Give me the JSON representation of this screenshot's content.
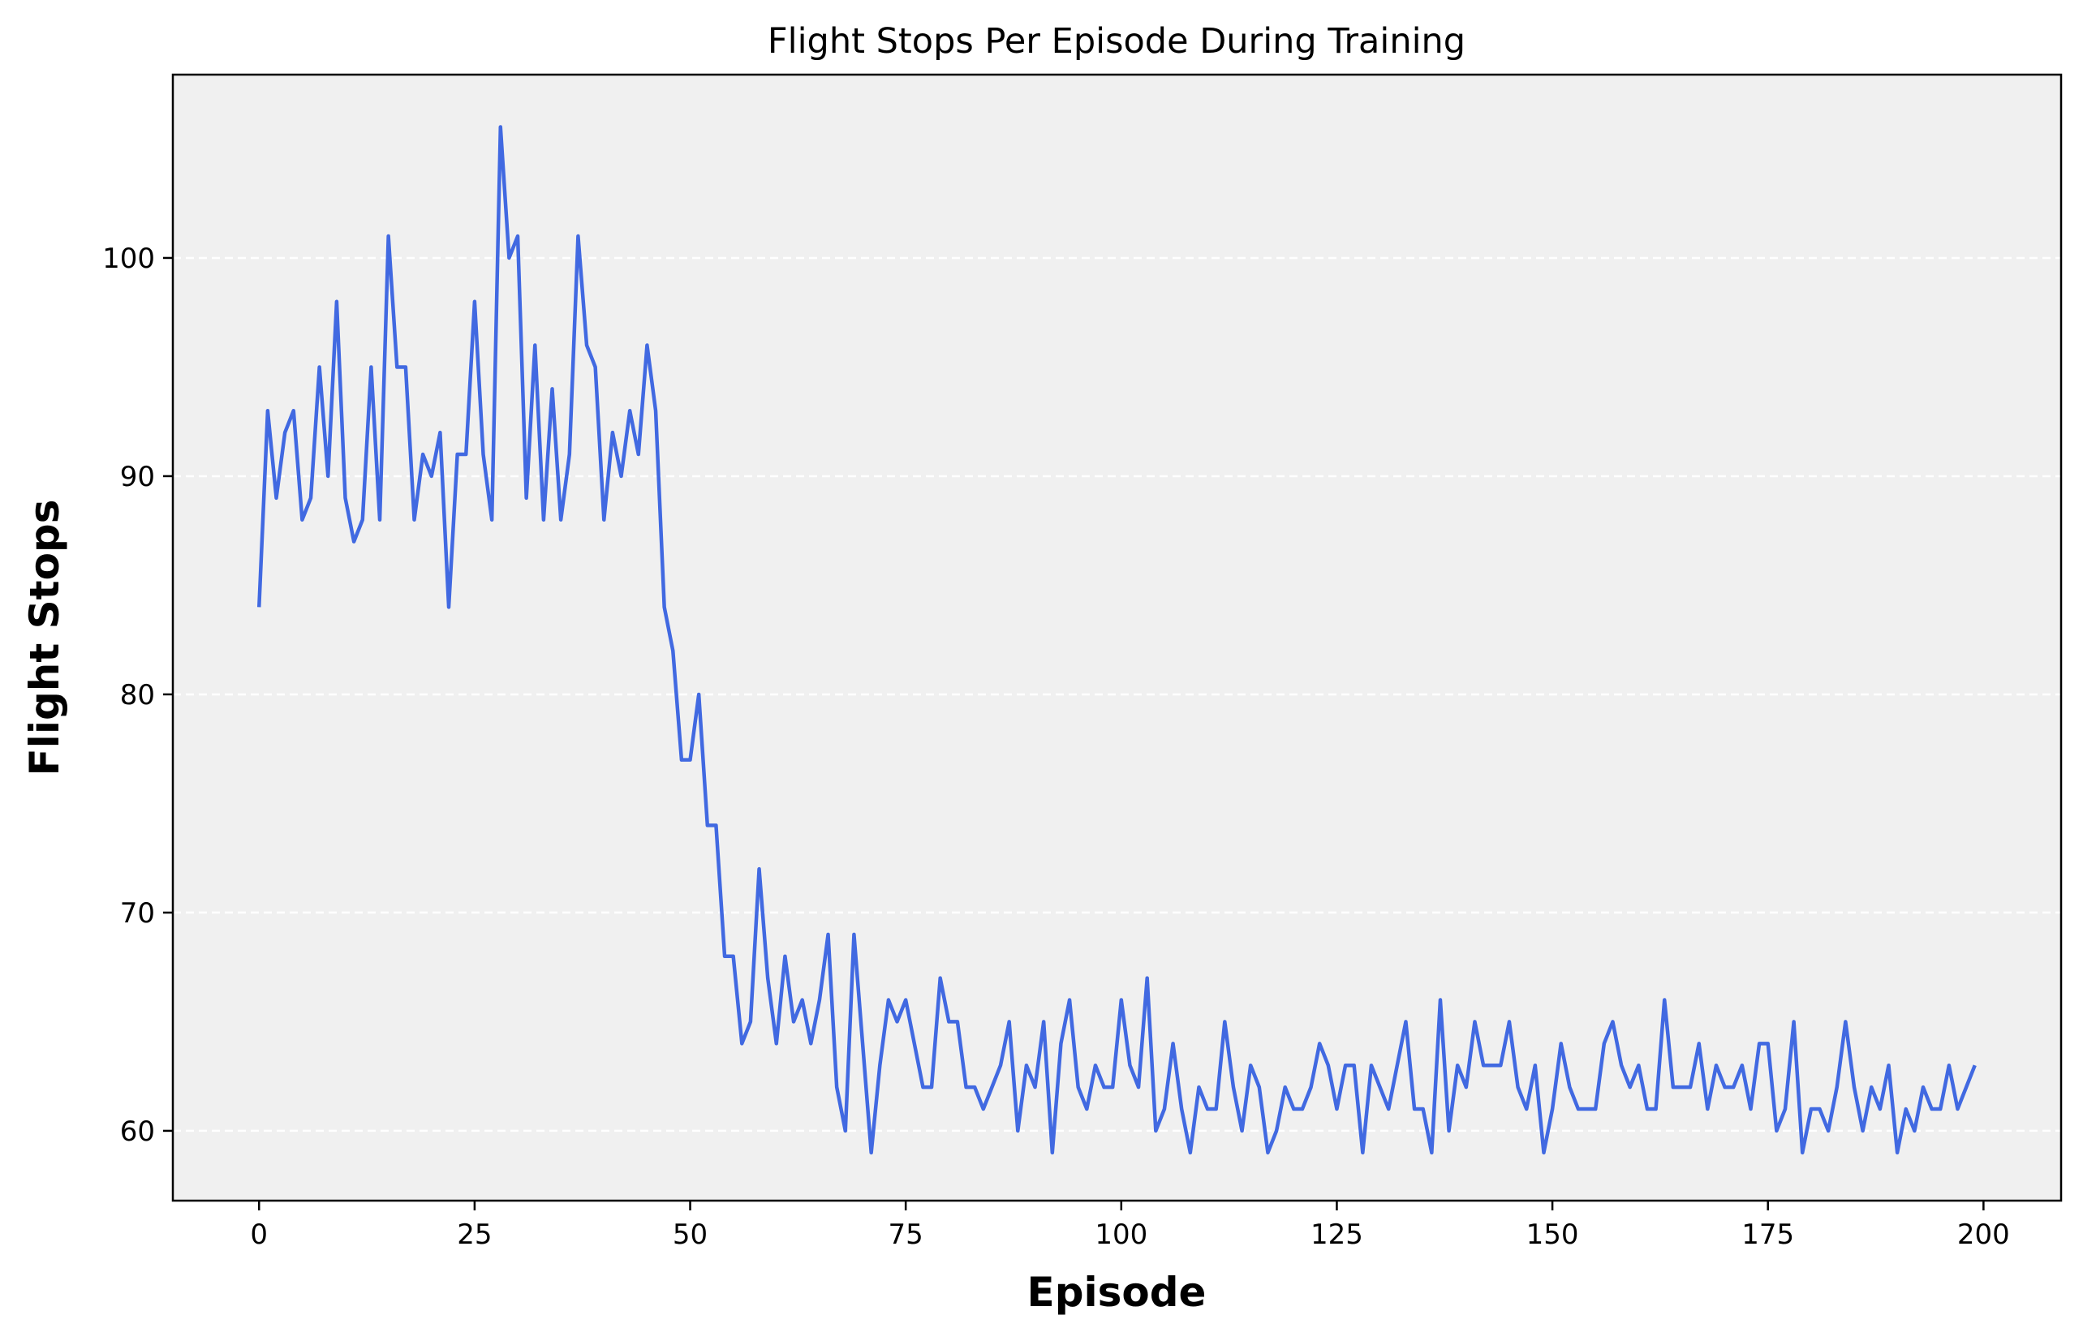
{
  "chart_data": {
    "type": "line",
    "title": "Flight Stops Per Episode During Training",
    "xlabel": "Episode",
    "ylabel": "Flight Stops",
    "xlim": [
      -10,
      209
    ],
    "ylim": [
      56.8,
      108.4
    ],
    "xticks": [
      0,
      25,
      50,
      75,
      100,
      125,
      150,
      175,
      200
    ],
    "yticks": [
      60,
      70,
      80,
      90,
      100
    ],
    "grid": "y-dashed",
    "colors": {
      "line": "#4169e1",
      "plot_bg": "#f0f0f0",
      "grid": "#ffffff"
    },
    "series": [
      {
        "values": [
          84,
          93,
          89,
          92,
          93,
          88,
          89,
          95,
          90,
          98,
          89,
          87,
          88,
          95,
          88,
          101,
          95,
          95,
          88,
          91,
          90,
          92,
          84,
          91,
          91,
          98,
          91,
          88,
          106,
          100,
          101,
          89,
          96,
          88,
          94,
          88,
          91,
          101,
          96,
          95,
          88,
          92,
          90,
          93,
          91,
          96,
          93,
          84,
          82,
          77,
          77,
          80,
          74,
          74,
          68,
          68,
          64,
          65,
          72,
          67,
          64,
          68,
          65,
          66,
          64,
          66,
          69,
          62,
          60,
          69,
          64,
          59,
          63,
          66,
          65,
          66,
          64,
          62,
          62,
          67,
          65,
          65,
          62,
          62,
          61,
          62,
          63,
          65,
          60,
          63,
          62,
          65,
          59,
          64,
          66,
          62,
          61,
          63,
          62,
          62,
          66,
          63,
          62,
          67,
          60,
          61,
          64,
          61,
          59,
          62,
          61,
          61,
          65,
          62,
          60,
          63,
          62,
          59,
          60,
          62,
          61,
          61,
          62,
          64,
          63,
          61,
          63,
          63,
          59,
          63,
          62,
          61,
          63,
          65,
          61,
          61,
          59,
          66,
          60,
          63,
          62,
          65,
          63,
          63,
          63,
          65,
          62,
          61,
          63,
          59,
          61,
          64,
          62,
          61,
          61,
          61,
          64,
          65,
          63,
          62,
          63,
          61,
          61,
          66,
          62,
          62,
          62,
          64,
          61,
          63,
          62,
          62,
          63,
          61,
          64,
          64,
          60,
          61,
          65,
          59,
          61,
          61,
          60,
          62,
          65,
          62,
          60,
          62,
          61,
          63,
          59,
          61,
          60,
          62,
          61,
          61,
          63,
          61,
          62,
          63
        ]
      }
    ]
  }
}
